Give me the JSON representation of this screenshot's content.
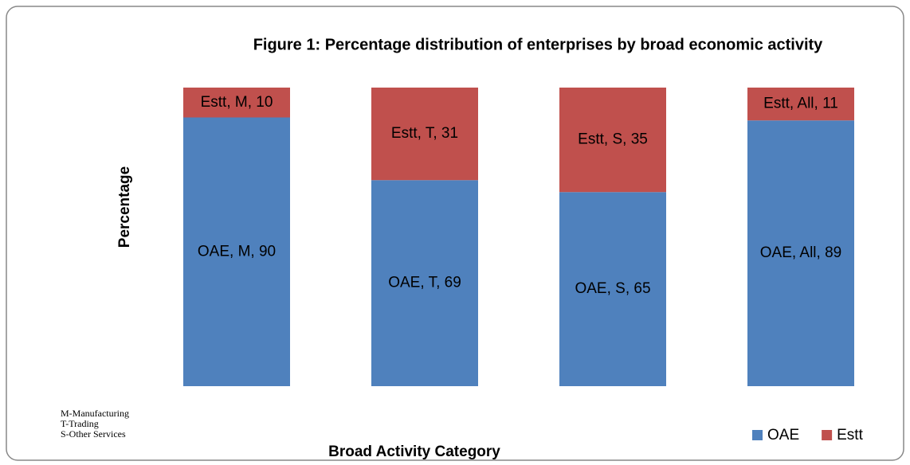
{
  "chart_data": {
    "type": "stacked_bar",
    "title": "Figure 1: Percentage distribution of enterprises by broad economic activity",
    "x_label": "Broad Activity Category",
    "y_label": "Percentage",
    "categories": [
      "M",
      "T",
      "S",
      "All"
    ],
    "series": [
      {
        "name": "OAE",
        "color": "#4f81bd",
        "values": [
          90,
          69,
          65,
          89
        ],
        "value_labels": [
          "OAE, M, 90",
          "OAE, T, 69",
          "OAE, S, 65",
          "OAE, All, 89"
        ]
      },
      {
        "name": "Estt",
        "color": "#c0504d",
        "values": [
          10,
          31,
          35,
          11
        ],
        "value_labels": [
          "Estt, M, 10",
          "Estt, T, 31",
          "Estt, S, 35",
          "Estt, All, 11"
        ]
      }
    ],
    "ylim": [
      0,
      100
    ],
    "legend": "bottom-right",
    "notes": [
      "M-Manufacturing",
      "T-Trading",
      "S-Other Services"
    ]
  }
}
